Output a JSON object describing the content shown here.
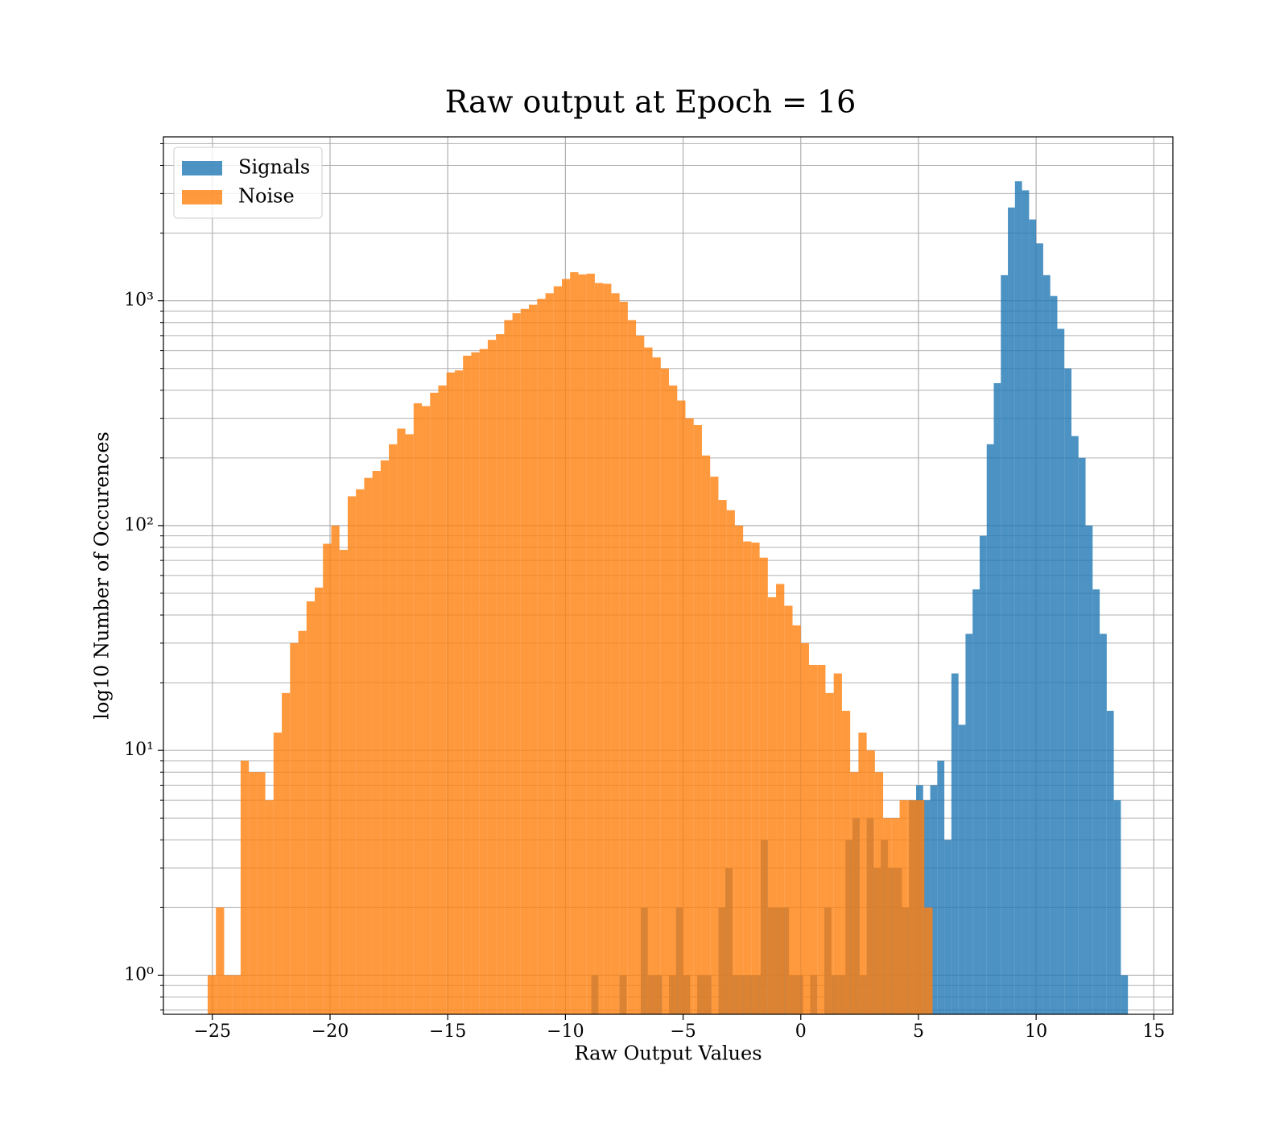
{
  "chart_data": {
    "type": "histogram",
    "title": "Raw output at Epoch = 16",
    "x_label": "Raw Output Values",
    "y_label": "log10 Number of Occurences",
    "log_y": true,
    "grid": true,
    "legend": "upper left",
    "opacity": 0.8,
    "xlim": [
      -27.08,
      15.81
    ],
    "ylim": [
      0.67,
      5360
    ],
    "xticks": [
      {
        "value": -25,
        "label": "−25"
      },
      {
        "value": -20,
        "label": "−20"
      },
      {
        "value": -15,
        "label": "−15"
      },
      {
        "value": -10,
        "label": "−10"
      },
      {
        "value": -5,
        "label": "−5"
      },
      0,
      5,
      10,
      15
    ],
    "yticks": [
      {
        "value": 1,
        "label": "10⁰"
      },
      {
        "value": 10,
        "label": "10¹"
      },
      {
        "value": 100,
        "label": "10²"
      },
      {
        "value": 1000,
        "label": "10³"
      }
    ],
    "yminorticks": [
      0.7,
      0.8,
      0.9,
      2,
      3,
      4,
      5,
      6,
      7,
      8,
      9,
      20,
      30,
      40,
      50,
      60,
      70,
      80,
      90,
      200,
      300,
      400,
      500,
      600,
      700,
      800,
      900,
      2000,
      3000,
      4000,
      5000
    ],
    "series": [
      {
        "name": "Signals",
        "color": "#1f77b4",
        "bins": [
          -8.9,
          -8.6,
          -8.3,
          -8,
          -7.7,
          -7.4,
          -7.1,
          -6.8,
          -6.5,
          -6.2,
          -5.9,
          -5.6,
          -5.3,
          -5,
          -4.7,
          -4.4,
          -4.1,
          -3.8,
          -3.5,
          -3.2,
          -2.9,
          -2.6,
          -2.3,
          -2,
          -1.7,
          -1.4,
          -1.1,
          -0.8,
          -0.5,
          -0.2,
          0.1,
          0.4,
          0.7,
          1,
          1.3,
          1.6,
          1.9,
          2.2,
          2.5,
          2.8,
          3.1,
          3.4,
          3.7,
          4,
          4.3,
          4.6,
          4.9,
          5.2,
          5.5,
          5.8,
          6.1,
          6.4,
          6.7,
          7,
          7.3,
          7.6,
          7.9,
          8.2,
          8.5,
          8.8,
          9.1,
          9.4,
          9.7,
          10,
          10.3,
          10.6,
          10.9,
          11.2,
          11.5,
          11.8,
          12.1,
          12.4,
          12.7,
          13,
          13.3,
          13.6,
          13.9
        ],
        "values": [
          1,
          0,
          0,
          0,
          1,
          0,
          0,
          2,
          1,
          1,
          0,
          1,
          2,
          1,
          0,
          1,
          1,
          0,
          2,
          3,
          1,
          1,
          1,
          1,
          4,
          2,
          2,
          2,
          1,
          1,
          0,
          1,
          0,
          2,
          1,
          1,
          4,
          5,
          1,
          5,
          3,
          4,
          3,
          3,
          2,
          6,
          7,
          6,
          7,
          9,
          4,
          22,
          13,
          33,
          52,
          90,
          230,
          430,
          1300,
          2600,
          3400,
          3100,
          2300,
          1800,
          1300,
          1050,
          750,
          500,
          250,
          200,
          100,
          52,
          33,
          15,
          6,
          1
        ]
      },
      {
        "name": "Noise",
        "color": "#ff7f0e",
        "bins": [
          -25.2,
          -24.85,
          -24.5,
          -24.15,
          -23.8,
          -23.45,
          -23.1,
          -22.75,
          -22.4,
          -22.05,
          -21.7,
          -21.35,
          -21,
          -20.65,
          -20.3,
          -19.95,
          -19.6,
          -19.25,
          -18.9,
          -18.55,
          -18.2,
          -17.85,
          -17.5,
          -17.15,
          -16.8,
          -16.45,
          -16.1,
          -15.75,
          -15.4,
          -15.05,
          -14.7,
          -14.35,
          -14,
          -13.65,
          -13.3,
          -12.95,
          -12.6,
          -12.25,
          -11.9,
          -11.55,
          -11.2,
          -10.85,
          -10.5,
          -10.15,
          -9.8,
          -9.45,
          -9.1,
          -8.75,
          -8.4,
          -8.05,
          -7.7,
          -7.35,
          -7,
          -6.65,
          -6.3,
          -5.95,
          -5.6,
          -5.25,
          -4.9,
          -4.55,
          -4.2,
          -3.85,
          -3.5,
          -3.15,
          -2.8,
          -2.45,
          -2.1,
          -1.75,
          -1.4,
          -1.05,
          -0.7,
          -0.35,
          0,
          0.35,
          0.7,
          1.05,
          1.4,
          1.75,
          2.1,
          2.45,
          2.8,
          3.15,
          3.5,
          3.85,
          4.2,
          4.55,
          4.9,
          5.25,
          5.6
        ],
        "values": [
          1,
          2,
          1,
          1,
          9,
          8,
          8,
          6,
          12,
          18,
          30,
          34,
          46,
          53,
          83,
          100,
          78,
          135,
          145,
          163,
          175,
          195,
          230,
          270,
          255,
          350,
          340,
          390,
          420,
          480,
          490,
          570,
          590,
          610,
          670,
          710,
          820,
          880,
          920,
          960,
          1020,
          1080,
          1160,
          1250,
          1340,
          1310,
          1320,
          1200,
          1190,
          1080,
          990,
          820,
          700,
          620,
          560,
          500,
          420,
          360,
          300,
          280,
          205,
          165,
          130,
          117,
          100,
          85,
          84,
          72,
          48,
          55,
          44,
          36,
          30,
          24,
          24,
          18,
          22,
          15,
          8,
          12,
          10,
          8,
          5,
          5,
          6,
          6,
          6,
          2
        ]
      }
    ]
  }
}
